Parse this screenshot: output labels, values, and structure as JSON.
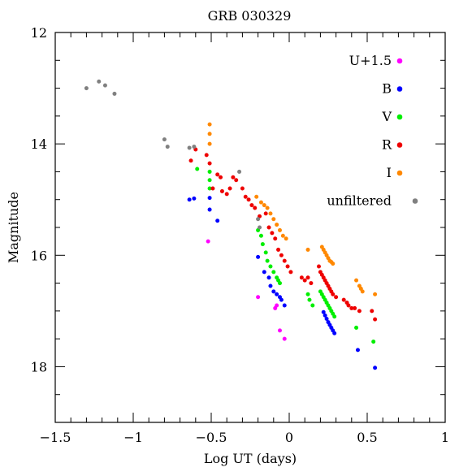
{
  "chart_data": {
    "type": "scatter",
    "title": "GRB 030329",
    "xlabel": "Log UT (days)",
    "ylabel": "Magnitude",
    "xlim": [
      -1.5,
      1
    ],
    "ylim": [
      19,
      12
    ],
    "y_inverted": true,
    "grid": false,
    "legend_position": "top-right",
    "x_ticks": [
      -1.5,
      -1,
      -0.5,
      0,
      0.5,
      1
    ],
    "x_tick_labels": [
      "−1.5",
      "−1",
      "−0.5",
      "0",
      "0.5",
      "1"
    ],
    "y_ticks": [
      12,
      14,
      16,
      18
    ],
    "y_tick_labels": [
      "12",
      "14",
      "16",
      "18"
    ],
    "series": [
      {
        "name": "U+1.5",
        "color": "#ff00ff",
        "points": [
          [
            -0.52,
            15.75
          ],
          [
            -0.2,
            16.75
          ],
          [
            -0.08,
            16.9
          ],
          [
            -0.06,
            17.35
          ],
          [
            -0.03,
            17.5
          ],
          [
            -0.09,
            16.95
          ]
        ]
      },
      {
        "name": "B",
        "color": "#0000ff",
        "points": [
          [
            -0.64,
            15.0
          ],
          [
            -0.61,
            14.98
          ],
          [
            -0.51,
            14.97
          ],
          [
            -0.51,
            15.18
          ],
          [
            -0.46,
            15.38
          ],
          [
            -0.2,
            16.03
          ],
          [
            -0.16,
            16.3
          ],
          [
            -0.13,
            16.4
          ],
          [
            -0.12,
            16.55
          ],
          [
            -0.1,
            16.65
          ],
          [
            -0.08,
            16.7
          ],
          [
            -0.06,
            16.75
          ],
          [
            -0.05,
            16.8
          ],
          [
            -0.03,
            16.9
          ],
          [
            0.22,
            17.02
          ],
          [
            0.23,
            17.08
          ],
          [
            0.24,
            17.14
          ],
          [
            0.25,
            17.2
          ],
          [
            0.26,
            17.25
          ],
          [
            0.27,
            17.3
          ],
          [
            0.28,
            17.35
          ],
          [
            0.29,
            17.4
          ],
          [
            0.44,
            17.7
          ],
          [
            0.55,
            18.02
          ]
        ]
      },
      {
        "name": "V",
        "color": "#00ee00",
        "points": [
          [
            -0.59,
            14.45
          ],
          [
            -0.51,
            14.5
          ],
          [
            -0.51,
            14.65
          ],
          [
            -0.51,
            14.8
          ],
          [
            -0.2,
            15.55
          ],
          [
            -0.18,
            15.65
          ],
          [
            -0.17,
            15.8
          ],
          [
            -0.15,
            15.95
          ],
          [
            -0.14,
            16.1
          ],
          [
            -0.12,
            16.2
          ],
          [
            -0.1,
            16.3
          ],
          [
            -0.08,
            16.4
          ],
          [
            -0.07,
            16.45
          ],
          [
            -0.06,
            16.5
          ],
          [
            0.12,
            16.7
          ],
          [
            0.13,
            16.8
          ],
          [
            0.15,
            16.9
          ],
          [
            0.2,
            16.65
          ],
          [
            0.21,
            16.7
          ],
          [
            0.22,
            16.75
          ],
          [
            0.23,
            16.8
          ],
          [
            0.24,
            16.85
          ],
          [
            0.25,
            16.9
          ],
          [
            0.26,
            16.95
          ],
          [
            0.27,
            17.0
          ],
          [
            0.28,
            17.05
          ],
          [
            0.29,
            17.1
          ],
          [
            0.43,
            17.3
          ],
          [
            0.54,
            17.55
          ]
        ]
      },
      {
        "name": "R",
        "color": "#ee0000",
        "points": [
          [
            -0.63,
            14.3
          ],
          [
            -0.6,
            14.1
          ],
          [
            -0.53,
            14.2
          ],
          [
            -0.51,
            14.35
          ],
          [
            -0.49,
            14.8
          ],
          [
            -0.46,
            14.55
          ],
          [
            -0.44,
            14.6
          ],
          [
            -0.43,
            14.85
          ],
          [
            -0.4,
            14.9
          ],
          [
            -0.38,
            14.8
          ],
          [
            -0.36,
            14.6
          ],
          [
            -0.34,
            14.65
          ],
          [
            -0.3,
            14.8
          ],
          [
            -0.28,
            14.95
          ],
          [
            -0.26,
            15.0
          ],
          [
            -0.24,
            15.1
          ],
          [
            -0.22,
            15.15
          ],
          [
            -0.19,
            15.3
          ],
          [
            -0.15,
            15.25
          ],
          [
            -0.13,
            15.5
          ],
          [
            -0.11,
            15.6
          ],
          [
            -0.09,
            15.7
          ],
          [
            -0.07,
            15.9
          ],
          [
            -0.05,
            16.0
          ],
          [
            -0.03,
            16.1
          ],
          [
            -0.01,
            16.2
          ],
          [
            0.01,
            16.3
          ],
          [
            0.08,
            16.4
          ],
          [
            0.1,
            16.45
          ],
          [
            0.12,
            16.4
          ],
          [
            0.14,
            16.5
          ],
          [
            0.19,
            16.2
          ],
          [
            0.2,
            16.3
          ],
          [
            0.21,
            16.35
          ],
          [
            0.22,
            16.4
          ],
          [
            0.23,
            16.45
          ],
          [
            0.24,
            16.5
          ],
          [
            0.25,
            16.55
          ],
          [
            0.26,
            16.6
          ],
          [
            0.27,
            16.65
          ],
          [
            0.28,
            16.7
          ],
          [
            0.3,
            16.75
          ],
          [
            0.35,
            16.8
          ],
          [
            0.37,
            16.85
          ],
          [
            0.38,
            16.9
          ],
          [
            0.4,
            16.95
          ],
          [
            0.42,
            16.95
          ],
          [
            0.45,
            17.0
          ],
          [
            0.53,
            17.0
          ],
          [
            0.55,
            17.15
          ]
        ]
      },
      {
        "name": "I",
        "color": "#ff8800",
        "points": [
          [
            -0.51,
            13.65
          ],
          [
            -0.51,
            13.82
          ],
          [
            -0.51,
            14.0
          ],
          [
            -0.21,
            14.95
          ],
          [
            -0.18,
            15.05
          ],
          [
            -0.16,
            15.1
          ],
          [
            -0.14,
            15.15
          ],
          [
            -0.12,
            15.25
          ],
          [
            -0.1,
            15.35
          ],
          [
            -0.08,
            15.45
          ],
          [
            -0.06,
            15.55
          ],
          [
            -0.04,
            15.65
          ],
          [
            -0.02,
            15.7
          ],
          [
            0.12,
            15.9
          ],
          [
            0.21,
            15.85
          ],
          [
            0.22,
            15.9
          ],
          [
            0.23,
            15.95
          ],
          [
            0.24,
            16.0
          ],
          [
            0.25,
            16.05
          ],
          [
            0.26,
            16.1
          ],
          [
            0.27,
            16.12
          ],
          [
            0.28,
            16.15
          ],
          [
            0.43,
            16.45
          ],
          [
            0.45,
            16.55
          ],
          [
            0.46,
            16.6
          ],
          [
            0.47,
            16.65
          ],
          [
            0.55,
            16.7
          ]
        ]
      },
      {
        "name": "unfiltered",
        "color": "#808080",
        "points": [
          [
            -1.3,
            13.0
          ],
          [
            -1.22,
            12.88
          ],
          [
            -1.18,
            12.95
          ],
          [
            -1.12,
            13.1
          ],
          [
            -0.8,
            13.92
          ],
          [
            -0.78,
            14.05
          ],
          [
            -0.64,
            14.07
          ],
          [
            -0.61,
            14.05
          ],
          [
            -0.32,
            14.5
          ],
          [
            -0.2,
            15.35
          ],
          [
            -0.19,
            15.5
          ]
        ]
      }
    ]
  }
}
